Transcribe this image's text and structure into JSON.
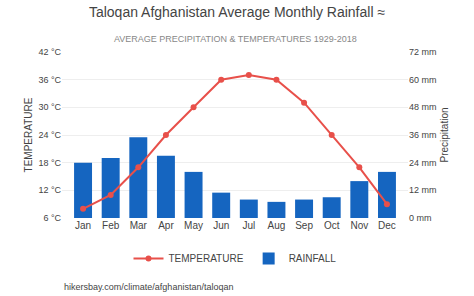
{
  "chart_data": {
    "type": "bar",
    "title": "Taloqan Afghanistan Average Monthly Rainfall ≈",
    "subtitle": "AVERAGE PRECIPITATION & TEMPERATURES 1929-2018",
    "annotations": [
      "hikersbay.com/climate/afghanistan/taloqan"
    ],
    "categories": [
      "Jan",
      "Feb",
      "Mar",
      "Apr",
      "May",
      "Jun",
      "Jul",
      "Aug",
      "Sep",
      "Oct",
      "Nov",
      "Dec"
    ],
    "series": [
      {
        "name": "TEMPERATURE",
        "type": "line",
        "marker": "circle",
        "color": "#e8504a",
        "values": [
          8,
          11,
          17,
          24,
          30,
          36,
          37,
          36,
          31,
          24,
          17,
          9
        ]
      },
      {
        "name": "RAINFALL",
        "type": "bar",
        "axis": "y2",
        "color": "#1565c0",
        "values": [
          24,
          26,
          35,
          27,
          20,
          11,
          8,
          7,
          8,
          9,
          16,
          20
        ]
      }
    ],
    "ylabel": "TEMPERATURE",
    "y2label": "Precipitation",
    "ylim": [
      6,
      42
    ],
    "yticks": [
      {
        "value": 6,
        "label": "6 °C"
      },
      {
        "value": 12,
        "label": "12 °C"
      },
      {
        "value": 18,
        "label": "18 °C"
      },
      {
        "value": 24,
        "label": "24 °C"
      },
      {
        "value": 30,
        "label": "30 °C"
      },
      {
        "value": 36,
        "label": "36 °C"
      },
      {
        "value": 42,
        "label": "42 °C"
      }
    ],
    "y2lim": [
      0,
      72
    ],
    "y2ticks": [
      {
        "value": 0,
        "label": "0 mm"
      },
      {
        "value": 12,
        "label": "12 mm"
      },
      {
        "value": 24,
        "label": "24 mm"
      },
      {
        "value": 36,
        "label": "36 mm"
      },
      {
        "value": 48,
        "label": "48 mm"
      },
      {
        "value": 60,
        "label": "60 mm"
      },
      {
        "value": 72,
        "label": "72 mm"
      }
    ],
    "grid": true,
    "legend": "bottom"
  }
}
